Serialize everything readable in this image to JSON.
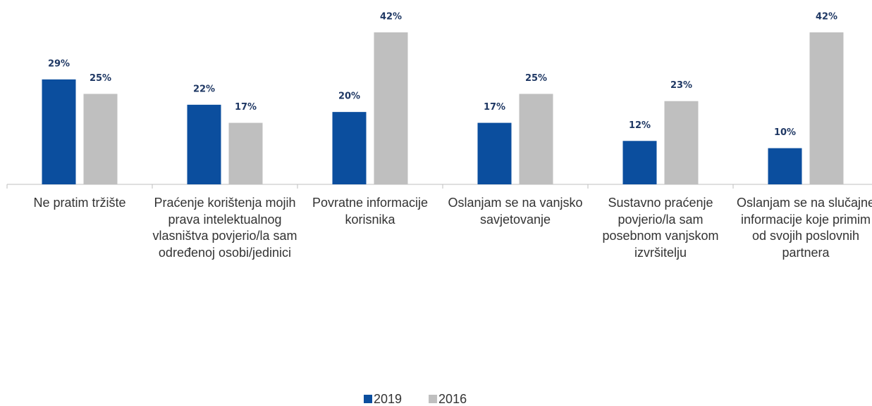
{
  "chart_data": {
    "type": "bar",
    "categories": [
      "Ne pratim tržište",
      "Praćenje korištenja mojih prava intelektualnog vlasništva povjerio/la sam određenoj osobi/jedinici",
      "Povratne informacije korisnika",
      "Oslanjam se na vanjsko savjetovanje",
      "Sustavno praćenje povjerio/la sam posebnom vanjskom izvršitelju",
      "Oslanjam se na slučajne informacije koje primim od svojih poslovnih partnera"
    ],
    "series": [
      {
        "name": "2019",
        "color": "#0b4e9e",
        "values": [
          29,
          22,
          20,
          17,
          12,
          10
        ],
        "value_labels": [
          "29%",
          "22%",
          "20%",
          "17%",
          "12%",
          "10%"
        ]
      },
      {
        "name": "2016",
        "color": "#bfbfbf",
        "values": [
          25,
          17,
          42,
          25,
          23,
          42
        ],
        "value_labels": [
          "25%",
          "17%",
          "42%",
          "25%",
          "23%",
          "42%"
        ]
      }
    ],
    "legend": "bottom"
  }
}
